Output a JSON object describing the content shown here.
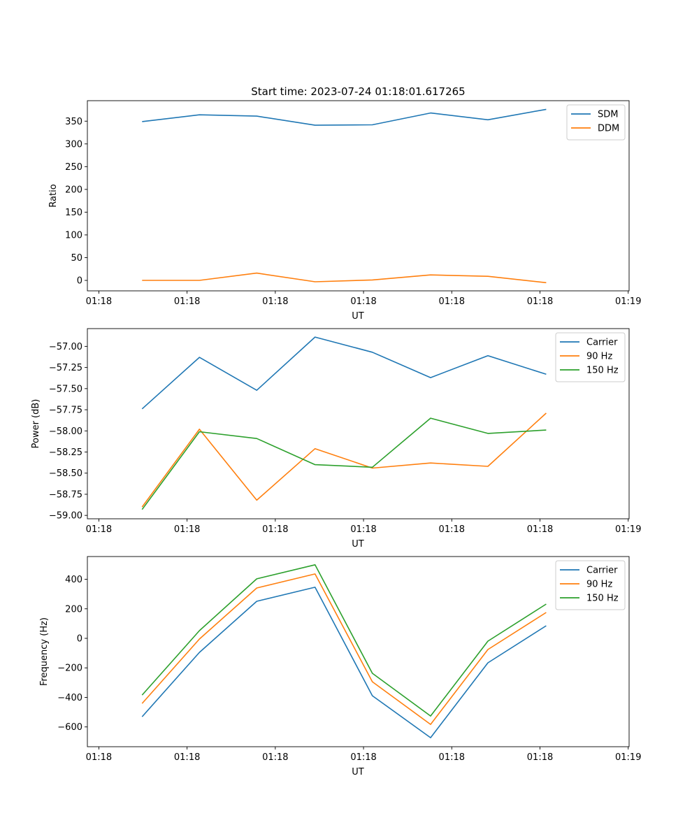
{
  "chart_data": [
    {
      "type": "line",
      "title": "Start time: 2023-07-24 01:18:01.617265",
      "xlabel": "UT",
      "ylabel": "Ratio",
      "x_units": "seconds after 01:18:00",
      "x": [
        4.9,
        11.4,
        17.9,
        24.5,
        31.0,
        37.6,
        44.1,
        50.7
      ],
      "xlim": [
        -1.3,
        60.1
      ],
      "xticks": [
        0,
        10,
        20,
        30,
        40,
        50,
        60
      ],
      "xtick_labels": [
        "01:18",
        "01:18",
        "01:18",
        "01:18",
        "01:18",
        "01:18",
        "01:19"
      ],
      "ylim": [
        -23,
        395
      ],
      "yticks": [
        0,
        50,
        100,
        150,
        200,
        250,
        300,
        350
      ],
      "ytick_labels": [
        "0",
        "50",
        "100",
        "150",
        "200",
        "250",
        "300",
        "350"
      ],
      "legend": "top-right",
      "grid": false,
      "series": [
        {
          "name": "SDM",
          "color": "#1f77b4",
          "values": [
            349,
            364,
            361,
            341,
            342,
            368,
            353,
            376
          ]
        },
        {
          "name": "DDM",
          "color": "#ff7f0e",
          "values": [
            0,
            0,
            16,
            -3,
            1,
            12,
            9,
            -5
          ]
        }
      ]
    },
    {
      "type": "line",
      "title": "",
      "xlabel": "UT",
      "ylabel": "Power (dB)",
      "x_units": "seconds after 01:18:00",
      "x": [
        4.9,
        11.4,
        17.9,
        24.5,
        31.0,
        37.6,
        44.1,
        50.7
      ],
      "xlim": [
        -1.3,
        60.1
      ],
      "xticks": [
        0,
        10,
        20,
        30,
        40,
        50,
        60
      ],
      "xtick_labels": [
        "01:18",
        "01:18",
        "01:18",
        "01:18",
        "01:18",
        "01:18",
        "01:19"
      ],
      "ylim": [
        -59.04,
        -56.79
      ],
      "yticks": [
        -59.0,
        -58.75,
        -58.5,
        -58.25,
        -58.0,
        -57.75,
        -57.5,
        -57.25,
        -57.0
      ],
      "ytick_labels": [
        "−59.00",
        "−58.75",
        "−58.50",
        "−58.25",
        "−58.00",
        "−57.75",
        "−57.50",
        "−57.25",
        "−57.00"
      ],
      "legend": "top-right",
      "grid": false,
      "series": [
        {
          "name": "Carrier",
          "color": "#1f77b4",
          "values": [
            -57.74,
            -57.13,
            -57.52,
            -56.89,
            -57.07,
            -57.37,
            -57.11,
            -57.33
          ]
        },
        {
          "name": "90 Hz",
          "color": "#ff7f0e",
          "values": [
            -58.9,
            -57.98,
            -58.82,
            -58.21,
            -58.44,
            -58.38,
            -58.42,
            -57.79
          ]
        },
        {
          "name": "150 Hz",
          "color": "#2ca02c",
          "values": [
            -58.93,
            -58.01,
            -58.09,
            -58.4,
            -58.43,
            -57.85,
            -58.03,
            -57.99
          ]
        }
      ]
    },
    {
      "type": "line",
      "title": "",
      "xlabel": "UT",
      "ylabel": "Frequency (Hz)",
      "x_units": "seconds after 01:18:00",
      "x": [
        4.9,
        11.4,
        17.9,
        24.5,
        31.0,
        37.6,
        44.1,
        50.7
      ],
      "xlim": [
        -1.3,
        60.1
      ],
      "xticks": [
        0,
        10,
        20,
        30,
        40,
        50,
        60
      ],
      "xtick_labels": [
        "01:18",
        "01:18",
        "01:18",
        "01:18",
        "01:18",
        "01:18",
        "01:19"
      ],
      "ylim": [
        -734,
        554
      ],
      "yticks": [
        -600,
        -400,
        -200,
        0,
        200,
        400
      ],
      "ytick_labels": [
        "−600",
        "−400",
        "−200",
        "0",
        "200",
        "400"
      ],
      "legend": "top-right",
      "grid": false,
      "series": [
        {
          "name": "Carrier",
          "color": "#1f77b4",
          "values": [
            -531,
            -95,
            251,
            346,
            -389,
            -673,
            -166,
            85
          ]
        },
        {
          "name": "90 Hz",
          "color": "#ff7f0e",
          "values": [
            -441,
            -5,
            341,
            436,
            -294,
            -583,
            -76,
            175
          ]
        },
        {
          "name": "150 Hz",
          "color": "#2ca02c",
          "values": [
            -384,
            52,
            403,
            498,
            -237,
            -526,
            -19,
            232
          ]
        }
      ]
    }
  ]
}
